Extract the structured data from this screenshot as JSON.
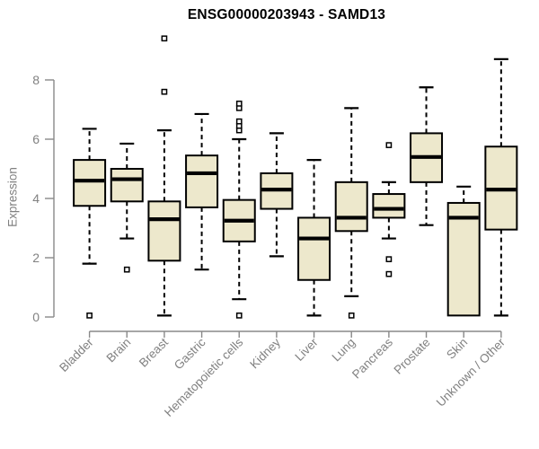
{
  "chart_data": {
    "type": "boxplot",
    "title": "ENSG00000203943 - SAMD13",
    "ylabel": "Expression",
    "ylim": [
      0,
      8
    ],
    "yticks": [
      0,
      2,
      4,
      6,
      8
    ],
    "grid": false,
    "legend": null,
    "box_fill": "#ede8cc",
    "box_stroke": "#000000",
    "axis_color": "#898989",
    "label_color": "#818181",
    "categories": [
      "Bladder",
      "Brain",
      "Breast",
      "Gastric",
      "Hematopoietic cells",
      "Kidney",
      "Liver",
      "Lung",
      "Pancreas",
      "Prostate",
      "Skin",
      "Unknown / Other"
    ],
    "series": [
      {
        "category": "Bladder",
        "whisker_low": 1.8,
        "q1": 3.75,
        "median": 4.6,
        "q3": 5.3,
        "whisker_high": 6.35,
        "outliers": [
          0.05
        ]
      },
      {
        "category": "Brain",
        "whisker_low": 2.65,
        "q1": 3.9,
        "median": 4.65,
        "q3": 5.0,
        "whisker_high": 5.85,
        "outliers": [
          1.6
        ]
      },
      {
        "category": "Breast",
        "whisker_low": 0.05,
        "q1": 1.9,
        "median": 3.3,
        "q3": 3.9,
        "whisker_high": 6.3,
        "outliers": [
          7.6,
          9.4
        ]
      },
      {
        "category": "Gastric",
        "whisker_low": 1.6,
        "q1": 3.7,
        "median": 4.85,
        "q3": 5.45,
        "whisker_high": 6.85,
        "outliers": []
      },
      {
        "category": "Hematopoietic cells",
        "whisker_low": 0.6,
        "q1": 2.55,
        "median": 3.25,
        "q3": 3.95,
        "whisker_high": 6.0,
        "outliers": [
          0.05,
          6.3,
          6.45,
          6.6,
          7.05,
          7.2
        ]
      },
      {
        "category": "Kidney",
        "whisker_low": 2.05,
        "q1": 3.65,
        "median": 4.3,
        "q3": 4.85,
        "whisker_high": 6.2,
        "outliers": []
      },
      {
        "category": "Liver",
        "whisker_low": 0.05,
        "q1": 1.25,
        "median": 2.65,
        "q3": 3.35,
        "whisker_high": 5.3,
        "outliers": []
      },
      {
        "category": "Lung",
        "whisker_low": 0.7,
        "q1": 2.9,
        "median": 3.35,
        "q3": 4.55,
        "whisker_high": 7.05,
        "outliers": [
          0.05
        ]
      },
      {
        "category": "Pancreas",
        "whisker_low": 2.65,
        "q1": 3.35,
        "median": 3.65,
        "q3": 4.15,
        "whisker_high": 4.55,
        "outliers": [
          5.8,
          1.95,
          1.45
        ]
      },
      {
        "category": "Prostate",
        "whisker_low": 3.1,
        "q1": 4.55,
        "median": 5.4,
        "q3": 6.2,
        "whisker_high": 7.75,
        "outliers": []
      },
      {
        "category": "Skin",
        "whisker_low": 0.05,
        "q1": 0.05,
        "median": 3.35,
        "q3": 3.85,
        "whisker_high": 4.4,
        "outliers": []
      },
      {
        "category": "Unknown / Other",
        "whisker_low": 0.05,
        "q1": 2.95,
        "median": 4.3,
        "q3": 5.75,
        "whisker_high": 8.7,
        "outliers": []
      }
    ]
  }
}
